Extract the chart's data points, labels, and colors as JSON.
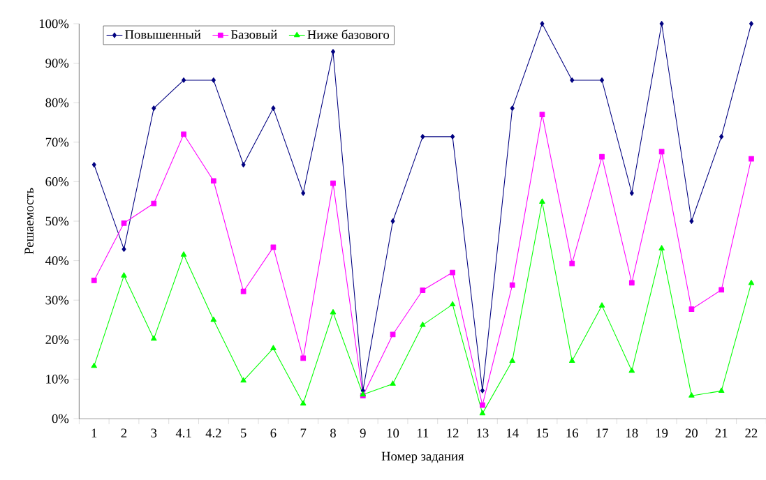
{
  "chart_data": {
    "type": "line",
    "xlabel": "Номер задания",
    "ylabel": "Решаемость",
    "categories": [
      "1",
      "2",
      "3",
      "4.1",
      "4.2",
      "5",
      "6",
      "7",
      "8",
      "9",
      "10",
      "11",
      "12",
      "13",
      "14",
      "15",
      "16",
      "17",
      "18",
      "19",
      "20",
      "21",
      "22"
    ],
    "series": [
      {
        "name": "Повышенный",
        "color": "#000080",
        "marker": "diamond",
        "values": [
          64.3,
          42.9,
          78.6,
          85.7,
          85.7,
          64.3,
          78.6,
          57.1,
          92.9,
          7.1,
          50,
          71.4,
          71.4,
          7.1,
          78.6,
          100,
          85.7,
          85.7,
          57.1,
          100,
          50,
          71.4,
          100
        ]
      },
      {
        "name": "Базовый",
        "color": "#ff00ff",
        "marker": "square",
        "values": [
          35.0,
          49.5,
          54.5,
          72,
          60.2,
          32.2,
          43.4,
          15.3,
          59.6,
          5.8,
          21.3,
          32.5,
          37,
          3.4,
          33.8,
          77,
          39.3,
          66.3,
          34.4,
          67.6,
          27.7,
          32.6,
          65.8
        ]
      },
      {
        "name": "Ниже базового",
        "color": "#00ff00",
        "marker": "triangle",
        "values": [
          13.3,
          36.2,
          20.2,
          41.5,
          25,
          9.6,
          17.8,
          3.8,
          26.9,
          6.1,
          8.8,
          23.7,
          28.9,
          1.3,
          14.6,
          54.9,
          14.6,
          28.6,
          12.1,
          43.1,
          5.8,
          7.0,
          34.3
        ]
      }
    ],
    "ylim": [
      0,
      100
    ],
    "yticks": [
      {
        "value": 0,
        "label": "0%"
      },
      {
        "value": 10,
        "label": "10%"
      },
      {
        "value": 20,
        "label": "20%"
      },
      {
        "value": 30,
        "label": "30%"
      },
      {
        "value": 40,
        "label": "40%"
      },
      {
        "value": 50,
        "label": "50%"
      },
      {
        "value": 60,
        "label": "60%"
      },
      {
        "value": 70,
        "label": "70%"
      },
      {
        "value": 80,
        "label": "80%"
      },
      {
        "value": 90,
        "label": "90%"
      },
      {
        "value": 100,
        "label": "100%"
      }
    ],
    "grid": false,
    "legend": "top left",
    "line_style": "solid"
  }
}
